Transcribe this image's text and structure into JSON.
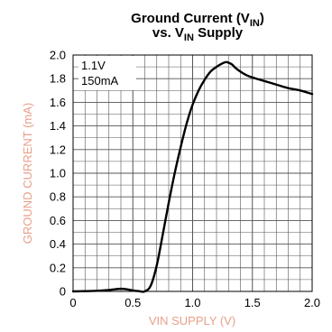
{
  "chart_data": {
    "type": "line",
    "title_line1": "Ground Current (V",
    "title_line1_sub": "IN",
    "title_line1_end": ")",
    "title_line2_pre": "vs. V",
    "title_line2_sub": "IN",
    "title_line2_end": " Supply",
    "xlabel": "VIN SUPPLY (V)",
    "ylabel": "GROUND CURRENT (mA)",
    "annotations": [
      "1.1V",
      "150mA"
    ],
    "xlim": [
      0,
      2.0
    ],
    "ylim": [
      0,
      2.0
    ],
    "x_major_ticks": [
      0,
      0.5,
      1.0,
      1.5,
      2.0
    ],
    "x_tick_labels": [
      "0",
      "0.5",
      "1.0",
      "1.5",
      "2.0"
    ],
    "y_major_ticks": [
      0,
      0.2,
      0.4,
      0.6,
      0.8,
      1.0,
      1.2,
      1.4,
      1.6,
      1.8,
      2.0
    ],
    "y_tick_labels": [
      "0",
      "0.2",
      "0.4",
      "0.6",
      "0.8",
      "1.0",
      "1.2",
      "1.4",
      "1.6",
      "1.8",
      "2.0"
    ],
    "grid": true,
    "colors": {
      "line": "#000000",
      "grid": "#555555",
      "axis_label": "#e8a08a"
    },
    "series": [
      {
        "x": [
          0,
          0.1,
          0.2,
          0.3,
          0.35,
          0.4,
          0.45,
          0.5,
          0.55,
          0.6,
          0.65,
          0.7,
          0.75,
          0.8,
          0.85,
          0.9,
          0.95,
          1.0,
          1.05,
          1.1,
          1.15,
          1.2,
          1.25,
          1.28,
          1.3,
          1.33,
          1.36,
          1.4,
          1.45,
          1.5,
          1.6,
          1.7,
          1.8,
          1.9,
          2.0
        ],
        "y": [
          0,
          0.002,
          0.005,
          0.012,
          0.018,
          0.022,
          0.018,
          0.008,
          0.002,
          0.0,
          0.05,
          0.22,
          0.48,
          0.75,
          1.0,
          1.22,
          1.42,
          1.58,
          1.7,
          1.79,
          1.86,
          1.9,
          1.93,
          1.94,
          1.935,
          1.92,
          1.89,
          1.86,
          1.83,
          1.81,
          1.78,
          1.75,
          1.72,
          1.7,
          1.67
        ]
      }
    ]
  }
}
